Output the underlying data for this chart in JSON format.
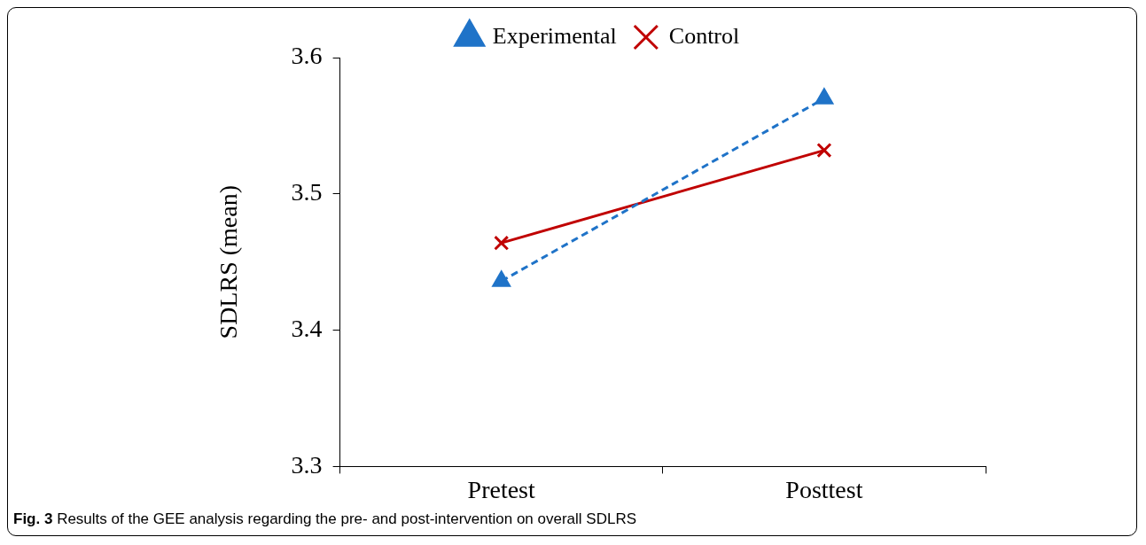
{
  "chart_data": {
    "type": "line",
    "ylabel": "SDLRS (mean)",
    "categories": [
      "Pretest",
      "Posttest"
    ],
    "series": [
      {
        "name": "Experimental",
        "color": "#1f73c8",
        "values": [
          3.436,
          3.57
        ],
        "marker": "triangle",
        "line_style": "dashed"
      },
      {
        "name": "Control",
        "color": "#c00000",
        "values": [
          3.464,
          3.532
        ],
        "marker": "cross",
        "line_style": "solid"
      }
    ],
    "ylim": [
      3.3,
      3.6
    ],
    "yticks": [
      3.3,
      3.4,
      3.5,
      3.6
    ],
    "grid": false,
    "legend": "top",
    "annotations": [
      "Fig. 3 Results of the GEE analysis regarding the pre- and post-intervention on overall SDLRS"
    ]
  }
}
